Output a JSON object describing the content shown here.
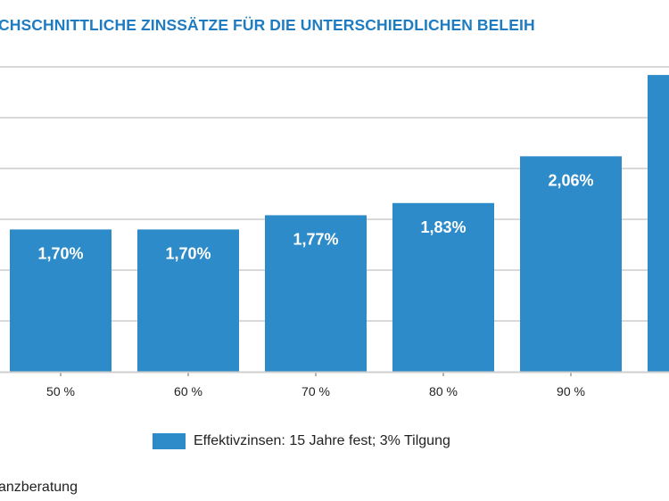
{
  "chart_data": {
    "type": "bar",
    "title": "CHSCHNITTLICHE ZINSSÄTZE FÜR DIE UNTERSCHIEDLICHEN BELEIH",
    "categories": [
      "50 %",
      "60 %",
      "70 %",
      "80 %",
      "90 %",
      ""
    ],
    "series": [
      {
        "name": "Effektivzinsen: 15 Jahre fest; 3% Tilgung",
        "values": [
          1.7,
          1.7,
          1.77,
          1.83,
          2.06,
          2.46
        ],
        "labels": [
          "1,70%",
          "1,70%",
          "1,77%",
          "1,83%",
          "2,06%",
          ""
        ],
        "color": "#2e8bc9"
      }
    ],
    "ylim": [
      1.0,
      2.5
    ],
    "yticks": [
      1.0,
      1.25,
      1.5,
      1.75,
      2.0,
      2.25,
      2.5
    ],
    "grid": true,
    "legend_position": "bottom",
    "xlabel": "",
    "ylabel": ""
  },
  "source": "anzberatung"
}
